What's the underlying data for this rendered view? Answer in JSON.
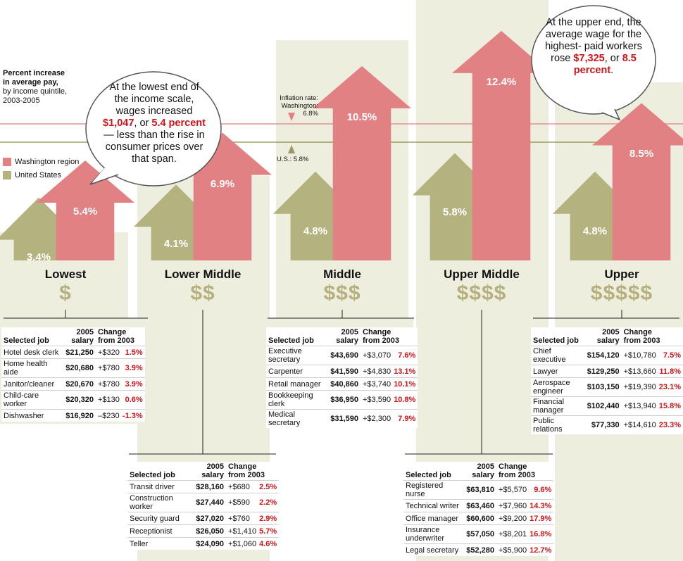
{
  "legend": {
    "title": "Percent increase in average pay,",
    "subtitle": "by income quintile, 2003-2005",
    "washington": "Washington region",
    "us": "United States"
  },
  "colors": {
    "washington": "#e28183",
    "us": "#b4b27f",
    "panel": "#eeeedf",
    "dollar": "#b5b07e",
    "red": "#d0141a"
  },
  "inflation": {
    "washington_label": "Inflation rate: Washington: 6.8%",
    "us_label": "U.S.: 5.8%",
    "washington": 6.8,
    "us": 5.8
  },
  "callouts": {
    "lowest": {
      "pre": "At the lowest end of the income scale, wages increased",
      "amount": "$1,047",
      "mid": ", or",
      "pct": "5.4 percent",
      "post": " — less than the rise in consumer prices over that span."
    },
    "upper": {
      "pre": "At the upper end, the average wage for the highest- paid workers rose",
      "amount": "$7,325",
      "mid": ", or",
      "pct": "8.5 percent",
      "post": "."
    }
  },
  "chart_data": {
    "type": "bar",
    "title": "Percent increase in average pay, by income quintile, 2003-2005",
    "categories": [
      "Lowest",
      "Lower Middle",
      "Middle",
      "Upper Middle",
      "Upper"
    ],
    "dollars": [
      "$",
      "$$",
      "$$$",
      "$$$$",
      "$$$$$"
    ],
    "series": [
      {
        "name": "United States",
        "values": [
          3.4,
          4.1,
          4.8,
          5.8,
          4.8
        ],
        "labels": [
          "3.4%",
          "4.1%",
          "4.8%",
          "5.8%",
          "4.8%"
        ]
      },
      {
        "name": "Washington region",
        "values": [
          5.4,
          6.9,
          10.5,
          12.4,
          8.5
        ],
        "labels": [
          "5.4%",
          "6.9%",
          "10.5%",
          "12.4%",
          "8.5%"
        ]
      }
    ],
    "reference_lines": [
      {
        "name": "Inflation rate: Washington",
        "value": 6.8
      },
      {
        "name": "U.S.",
        "value": 5.8
      }
    ]
  },
  "tables": {
    "headers": {
      "job": "Selected job",
      "salary1": "2005",
      "salary2": "salary",
      "change1": "Change",
      "change2": "from 2003"
    },
    "lowest": [
      {
        "job": "Hotel desk clerk",
        "salary": "$21,250",
        "change": "+$320",
        "pct": "1.5%"
      },
      {
        "job": "Home health aide",
        "salary": "$20,680",
        "change": "+$780",
        "pct": "3.9%"
      },
      {
        "job": "Janitor/cleaner",
        "salary": "$20,670",
        "change": "+$780",
        "pct": "3.9%"
      },
      {
        "job": "Child-care worker",
        "salary": "$20,320",
        "change": "+$130",
        "pct": "0.6%"
      },
      {
        "job": "Dishwasher",
        "salary": "$16,920",
        "change": "–$230",
        "pct": "-1.3%"
      }
    ],
    "lower_middle": [
      {
        "job": "Transit driver",
        "salary": "$28,160",
        "change": "+$680",
        "pct": "2.5%"
      },
      {
        "job": "Construction worker",
        "salary": "$27,440",
        "change": "+$590",
        "pct": "2.2%"
      },
      {
        "job": "Security guard",
        "salary": "$27,020",
        "change": "+$760",
        "pct": "2.9%"
      },
      {
        "job": "Receptionist",
        "salary": "$26,050",
        "change": "+$1,410",
        "pct": "5.7%"
      },
      {
        "job": "Teller",
        "salary": "$24,090",
        "change": "+$1,060",
        "pct": "4.6%"
      }
    ],
    "middle": [
      {
        "job": "Executive secretary",
        "salary": "$43,690",
        "change": "+$3,070",
        "pct": "7.6%"
      },
      {
        "job": "Carpenter",
        "salary": "$41,590",
        "change": "+$4,830",
        "pct": "13.1%"
      },
      {
        "job": "Retail manager",
        "salary": "$40,860",
        "change": "+$3,740",
        "pct": "10.1%"
      },
      {
        "job": "Bookkeeping clerk",
        "salary": "$36,950",
        "change": "+$3,590",
        "pct": "10.8%"
      },
      {
        "job": "Medical secretary",
        "salary": "$31,590",
        "change": "+$2,300",
        "pct": "7.9%"
      }
    ],
    "upper_middle": [
      {
        "job": "Registered nurse",
        "salary": "$63,810",
        "change": "+$5,570",
        "pct": "9.6%"
      },
      {
        "job": "Technical writer",
        "salary": "$63,460",
        "change": "+$7,960",
        "pct": "14.3%"
      },
      {
        "job": "Office manager",
        "salary": "$60,600",
        "change": "+$9,200",
        "pct": "17.9%"
      },
      {
        "job": "Insurance underwriter",
        "salary": "$57,050",
        "change": "+$8,201",
        "pct": "16.8%"
      },
      {
        "job": "Legal secretary",
        "salary": "$52,280",
        "change": "+$5,900",
        "pct": "12.7%"
      }
    ],
    "upper": [
      {
        "job": "Chief executive",
        "salary": "$154,120",
        "change": "+$10,780",
        "pct": "7.5%"
      },
      {
        "job": "Lawyer",
        "salary": "$129,250",
        "change": "+$13,660",
        "pct": "11.8%"
      },
      {
        "job": "Aerospace engineer",
        "salary": "$103,150",
        "change": "+$19,390",
        "pct": "23.1%"
      },
      {
        "job": "Financial manager",
        "salary": "$102,440",
        "change": "+$13,940",
        "pct": "15.8%"
      },
      {
        "job": "Public relations",
        "salary": "$77,330",
        "change": "+$14,610",
        "pct": "23.3%"
      }
    ]
  }
}
